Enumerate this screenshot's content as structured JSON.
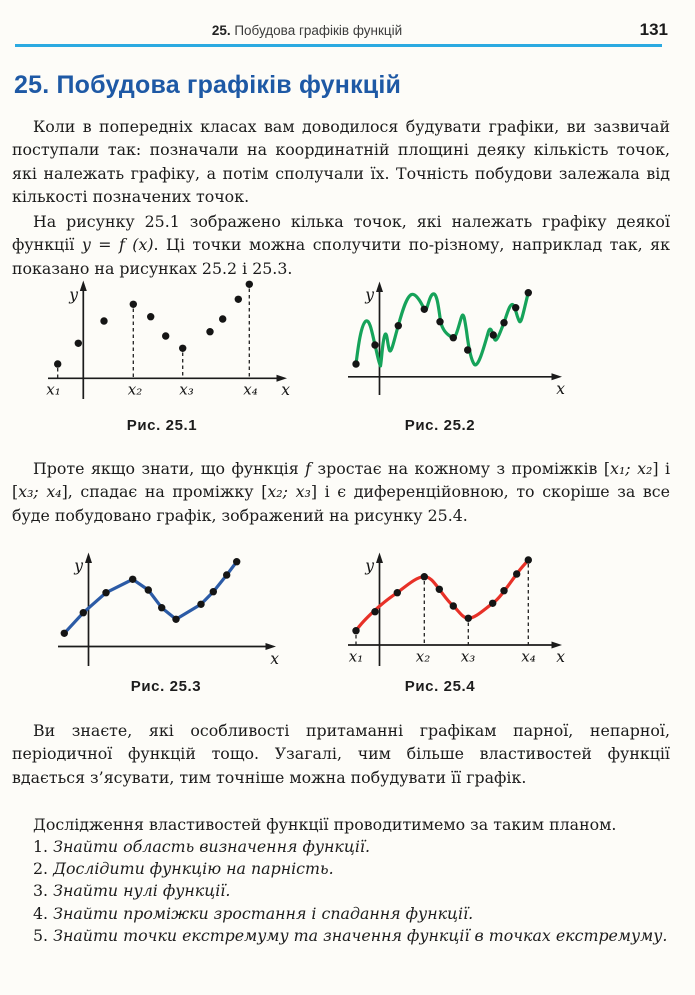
{
  "page": {
    "background": "#fdfcf8"
  },
  "colors": {
    "page_bg": "#fdfcf8",
    "heading_blue": "#1e59a5",
    "rule_blue": "#2baae1",
    "curve_green": "#16a35a",
    "curve_blue": "#2c5ba6",
    "curve_red": "#e73128",
    "point_black": "#151515"
  },
  "header": {
    "section_number": "25.",
    "section_title": " Побудова графіків функцій",
    "page_number": "131"
  },
  "heading": {
    "title": "25. Побудова графіків функцій"
  },
  "paragraphs": {
    "p1": {
      "segments": [
        {
          "t": "Коли в попередніх класах вам доводилося будувати графіки, ви зазвичай поступали так: позначали на координатній площині деяку кількість точок, які належать графіку, а потім сполучали їх. Точність побудови залежала від кількості позначених точок."
        }
      ]
    },
    "p2": {
      "segments": [
        {
          "t": "На рисунку 25.1 зображено кілька точок, які належать графіку деякої функції "
        },
        {
          "t": "y = f (x)",
          "i": true
        },
        {
          "t": ". Ці точки можна сполучити по-різному, наприклад так, як показано на рисунках 25.2 і 25.3."
        }
      ]
    },
    "p3": {
      "segments": [
        {
          "t": "Проте якщо знати, що функція "
        },
        {
          "t": "f",
          "i": true
        },
        {
          "t": " зростає на кожному з проміжків ["
        },
        {
          "t": "x₁; x₂",
          "i": true
        },
        {
          "t": "] і ["
        },
        {
          "t": "x₃; x₄",
          "i": true
        },
        {
          "t": "], спадає на проміжку ["
        },
        {
          "t": "x₂; x₃",
          "i": true
        },
        {
          "t": "] і є диференційовною, то скоріше за все буде побудовано графік, зображений на рисунку 25.4."
        }
      ]
    },
    "p4": {
      "segments": [
        {
          "t": "Ви знаєте, які особливості притаманні графікам парної, непарної, періодичної функцій тощо. Узагалі, чим більше властивостей функції вдається з’ясувати, тим точніше можна побудувати її графік."
        }
      ]
    },
    "p5": {
      "segments": [
        {
          "t": "Дослідження властивостей функції проводитимемо за таким планом."
        }
      ]
    }
  },
  "figures": [
    {
      "id": "fig-25-1",
      "caption": "Рис. 25.1",
      "ylabel": "y",
      "xlabel": "x",
      "tick_labels": [
        "x₁",
        "x₂",
        "x₃",
        "x₄"
      ],
      "curve": "none",
      "curve_color": "none",
      "points": [
        [
          57.7,
          364
        ],
        [
          78.3,
          343.3
        ],
        [
          104,
          321
        ],
        [
          133.3,
          304.3
        ],
        [
          150.7,
          316.7
        ],
        [
          165.7,
          336
        ],
        [
          182.7,
          348.3
        ],
        [
          210,
          331.7
        ],
        [
          222.7,
          319
        ],
        [
          238.3,
          299.3
        ],
        [
          249.3,
          284.3
        ]
      ]
    },
    {
      "id": "fig-25-2",
      "caption": "Рис. 25.2",
      "ylabel": "y",
      "xlabel": "x",
      "tick_labels": [],
      "curve": "wavy",
      "curve_color": "#16a35a",
      "points": [
        [
          356,
          364
        ],
        [
          375,
          345
        ],
        [
          398.3,
          325.7
        ],
        [
          424.3,
          309.3
        ],
        [
          440,
          321.7
        ],
        [
          453.3,
          337.7
        ],
        [
          467.7,
          350
        ],
        [
          493.3,
          335
        ],
        [
          504,
          322.7
        ],
        [
          515.7,
          307.7
        ],
        [
          528.3,
          292.7
        ]
      ]
    },
    {
      "id": "fig-25-3",
      "caption": "Рис. 25.3",
      "ylabel": "y",
      "xlabel": "x",
      "tick_labels": [],
      "curve": "polyline",
      "curve_color": "#2c5ba6",
      "points": [
        [
          64.3,
          633.3
        ],
        [
          83.3,
          612.7
        ],
        [
          106,
          592.7
        ],
        [
          132.7,
          579.3
        ],
        [
          148.3,
          590
        ],
        [
          161.7,
          607.7
        ],
        [
          176,
          619.3
        ],
        [
          201,
          604.3
        ],
        [
          213.3,
          591.7
        ],
        [
          226.7,
          575
        ],
        [
          236.7,
          561.7
        ]
      ]
    },
    {
      "id": "fig-25-4",
      "caption": "Рис. 25.4",
      "ylabel": "y",
      "xlabel": "x",
      "tick_labels": [
        "x₁",
        "x₂",
        "x₃",
        "x₄"
      ],
      "curve": "smooth",
      "curve_color": "#e73128",
      "points": [
        [
          356,
          630.7
        ],
        [
          375,
          611.7
        ],
        [
          397.3,
          592.7
        ],
        [
          424.3,
          576.7
        ],
        [
          439.3,
          589.3
        ],
        [
          453.3,
          606
        ],
        [
          468.3,
          618.3
        ],
        [
          492.7,
          603.3
        ],
        [
          504,
          590.7
        ],
        [
          516.7,
          574
        ],
        [
          528.3,
          560
        ]
      ]
    }
  ],
  "plan": {
    "items": [
      {
        "number": "1.",
        "text": "Знайти область визначення функції."
      },
      {
        "number": "2.",
        "text": "Дослідити функцію на парність."
      },
      {
        "number": "3.",
        "text": "Знайти нулі функції."
      },
      {
        "number": "4.",
        "text": "Знайти проміжки зростання і спадання функції."
      },
      {
        "number": "5.",
        "text": "Знайти точки екстремуму та значення функції в точках екстремуму."
      }
    ]
  }
}
